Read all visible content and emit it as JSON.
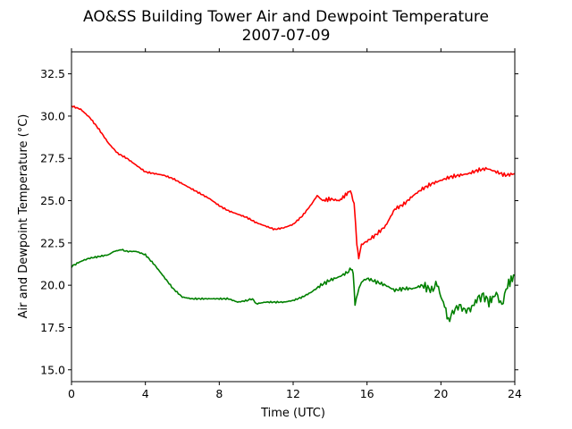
{
  "chart_data": {
    "type": "line",
    "title": "AO&SS Building Tower Air and Dewpoint Temperature",
    "subtitle": "2007-07-09",
    "xlabel": "Time (UTC)",
    "ylabel": "Air and Dewpoint Temperature (°C)",
    "xlim": [
      0,
      24
    ],
    "ylim": [
      14.3,
      33.8
    ],
    "x_ticks": [
      0,
      4,
      8,
      12,
      16,
      20,
      24
    ],
    "x_tick_labels": [
      "0",
      "4",
      "8",
      "12",
      "16",
      "20",
      "24"
    ],
    "y_ticks": [
      15.0,
      17.5,
      20.0,
      22.5,
      25.0,
      27.5,
      30.0,
      32.5
    ],
    "y_tick_labels": [
      "15.0",
      "17.5",
      "20.0",
      "22.5",
      "25.0",
      "27.5",
      "30.0",
      "32.5"
    ],
    "grid": false,
    "series": [
      {
        "color": "#ff0000",
        "x": [
          0,
          0.5,
          1,
          1.5,
          2,
          2.5,
          3,
          3.5,
          4,
          4.5,
          5,
          5.5,
          6,
          6.5,
          7,
          7.5,
          8,
          8.5,
          9,
          9.5,
          10,
          10.5,
          11,
          11.5,
          12,
          12.5,
          13,
          13.3,
          13.6,
          14,
          14.5,
          14.9,
          15.1,
          15.3,
          15.45,
          15.55,
          15.7,
          16,
          16.5,
          17,
          17.5,
          18,
          18.5,
          19,
          19.5,
          20,
          20.5,
          21,
          21.5,
          22,
          22.5,
          23,
          23.5,
          24
        ],
        "y": [
          30.6,
          30.4,
          29.9,
          29.2,
          28.4,
          27.8,
          27.5,
          27.1,
          26.7,
          26.6,
          26.5,
          26.3,
          26.0,
          25.7,
          25.4,
          25.1,
          24.7,
          24.4,
          24.2,
          24.0,
          23.7,
          23.5,
          23.3,
          23.4,
          23.6,
          24.1,
          24.8,
          25.3,
          25.0,
          25.1,
          25.0,
          25.4,
          25.6,
          24.8,
          22.5,
          21.6,
          22.4,
          22.6,
          23.0,
          23.5,
          24.5,
          24.8,
          25.3,
          25.7,
          26.0,
          26.2,
          26.4,
          26.5,
          26.6,
          26.8,
          26.9,
          26.7,
          26.5,
          26.6
        ]
      },
      {
        "color": "#008000",
        "x": [
          0,
          0.3,
          0.7,
          1,
          1.5,
          2,
          2.3,
          2.7,
          3,
          3.5,
          4,
          4.5,
          5,
          5.5,
          6,
          6.5,
          7,
          7.5,
          8,
          8.5,
          9,
          9.5,
          9.8,
          10,
          10.5,
          11,
          11.5,
          12,
          12.5,
          13,
          13.5,
          14,
          14.5,
          15,
          15.15,
          15.25,
          15.35,
          15.5,
          15.7,
          16,
          16.5,
          17,
          17.5,
          18,
          18.5,
          19,
          19.5,
          19.8,
          20,
          20.2,
          20.4,
          20.7,
          21,
          21.3,
          21.6,
          22,
          22.3,
          22.6,
          23,
          23.3,
          23.6,
          24
        ],
        "y": [
          21.1,
          21.3,
          21.5,
          21.6,
          21.7,
          21.8,
          22.0,
          22.1,
          22.0,
          22.0,
          21.8,
          21.2,
          20.5,
          19.8,
          19.3,
          19.2,
          19.2,
          19.2,
          19.2,
          19.2,
          19.0,
          19.1,
          19.2,
          18.9,
          19.0,
          19.0,
          19.0,
          19.1,
          19.3,
          19.6,
          20.0,
          20.3,
          20.5,
          20.8,
          21.0,
          20.7,
          18.8,
          19.6,
          20.2,
          20.4,
          20.2,
          20.0,
          19.7,
          19.8,
          19.8,
          20.0,
          19.7,
          20.1,
          19.3,
          18.8,
          17.9,
          18.5,
          18.8,
          18.5,
          18.6,
          19.2,
          19.4,
          19.0,
          19.5,
          18.8,
          20.0,
          20.6
        ]
      }
    ]
  }
}
